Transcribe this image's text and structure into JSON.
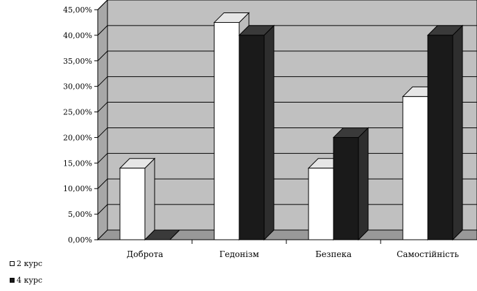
{
  "chart_data": {
    "type": "bar",
    "style": "3d-column",
    "categories": [
      "Доброта",
      "Гедонізм",
      "Безпека",
      "Самостійність"
    ],
    "series": [
      {
        "name": "2 курс",
        "values": [
          14,
          42.5,
          14,
          28
        ],
        "color": "#ffffff"
      },
      {
        "name": "4 курс",
        "values": [
          0,
          40,
          20,
          40
        ],
        "color": "#1a1a1a"
      }
    ],
    "y_ticks": [
      "0,00%",
      "5,00%",
      "10,00%",
      "15,00%",
      "20,00%",
      "25,00%",
      "30,00%",
      "35,00%",
      "40,00%",
      "45,00%"
    ],
    "ylim": [
      0,
      45
    ],
    "grid": true,
    "legend_position": "bottom-left",
    "colors": {
      "wall": "#c0c0c0",
      "floor": "#999999",
      "side_white": "#bdbdbd",
      "top_white": "#e6e6e6",
      "side_black": "#2e2e2e",
      "top_black": "#3a3a3a"
    }
  }
}
